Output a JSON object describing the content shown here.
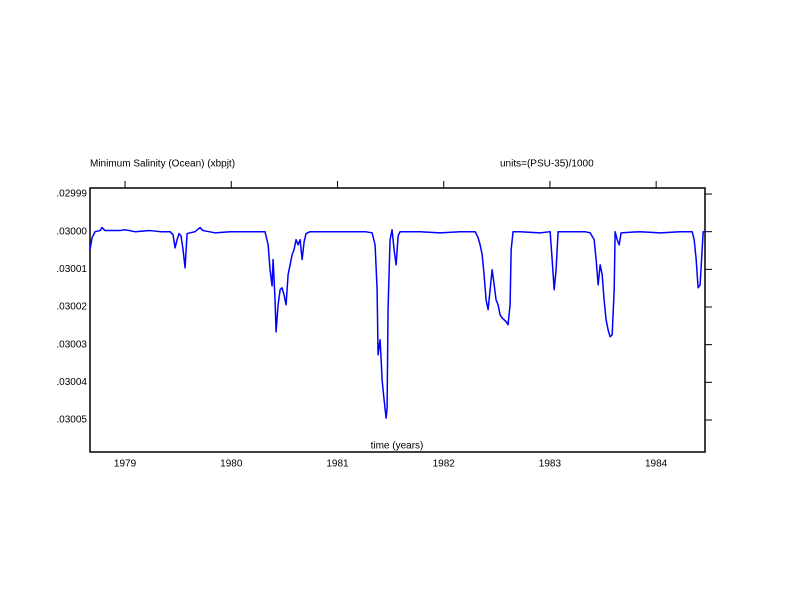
{
  "chart_data": {
    "type": "line",
    "title": "Minimum Salinity (Ocean) (xbpjt)",
    "subtitle": "units=(PSU-35)/1000",
    "xlabel": "time (years)",
    "xlim": [
      1978.67,
      1984.46
    ],
    "ylim": [
      0.0300585,
      0.0299884
    ],
    "xticks": [
      1979,
      1980,
      1981,
      1982,
      1983,
      1984
    ],
    "yticks": [
      {
        "value": 0.02999,
        "label": ".02999"
      },
      {
        "value": 0.03,
        "label": ".03000"
      },
      {
        "value": 0.03001,
        "label": ".03001"
      },
      {
        "value": 0.03002,
        "label": ".03002"
      },
      {
        "value": 0.03003,
        "label": ".03003"
      },
      {
        "value": 0.03004,
        "label": ".03004"
      },
      {
        "value": 0.03005,
        "label": ".03005"
      }
    ],
    "series": [
      {
        "color": "#0000ff",
        "x": [
          1978.67,
          1978.689,
          1978.718,
          1978.765,
          1978.783,
          1978.812,
          1978.953,
          1979.0,
          1979.094,
          1979.235,
          1979.33,
          1979.424,
          1979.452,
          1979.471,
          1979.49,
          1979.508,
          1979.527,
          1979.546,
          1979.565,
          1979.584,
          1979.659,
          1979.706,
          1979.734,
          1979.847,
          1979.989,
          1980.177,
          1980.318,
          1980.347,
          1980.365,
          1980.384,
          1980.394,
          1980.412,
          1980.422,
          1980.441,
          1980.46,
          1980.478,
          1980.497,
          1980.516,
          1980.535,
          1980.554,
          1980.573,
          1980.591,
          1980.61,
          1980.629,
          1980.648,
          1980.667,
          1980.686,
          1980.704,
          1980.742,
          1980.93,
          1981.119,
          1981.26,
          1981.326,
          1981.354,
          1981.373,
          1981.382,
          1981.401,
          1981.411,
          1981.42,
          1981.439,
          1981.458,
          1981.467,
          1981.476,
          1981.495,
          1981.514,
          1981.533,
          1981.552,
          1981.571,
          1981.589,
          1981.778,
          1981.966,
          1982.154,
          1982.296,
          1982.324,
          1982.343,
          1982.362,
          1982.38,
          1982.399,
          1982.418,
          1982.437,
          1982.456,
          1982.475,
          1982.493,
          1982.512,
          1982.531,
          1982.55,
          1982.569,
          1982.588,
          1982.606,
          1982.625,
          1982.635,
          1982.653,
          1982.719,
          1982.908,
          1983.002,
          1983.021,
          1983.04,
          1983.058,
          1983.077,
          1983.19,
          1983.331,
          1983.379,
          1983.416,
          1983.435,
          1983.454,
          1983.473,
          1983.492,
          1983.51,
          1983.529,
          1983.548,
          1983.567,
          1983.586,
          1983.605,
          1983.614,
          1983.633,
          1983.652,
          1983.67,
          1983.849,
          1984.038,
          1984.226,
          1984.339,
          1984.358,
          1984.377,
          1984.395,
          1984.414,
          1984.433,
          1984.443,
          1984.46
        ],
        "values": [
          0.0300048,
          0.0300016,
          0.03,
          0.0299997,
          0.0299989,
          0.0299997,
          0.0299997,
          0.0299995,
          0.03,
          0.0299997,
          0.03,
          0.03,
          0.0300008,
          0.0300043,
          0.0300021,
          0.0300005,
          0.0300011,
          0.0300048,
          0.0300096,
          0.0300005,
          0.03,
          0.0299989,
          0.0299997,
          0.0300003,
          0.03,
          0.03,
          0.03,
          0.0300035,
          0.0300101,
          0.0300144,
          0.0300074,
          0.0300181,
          0.0300266,
          0.0300194,
          0.0300154,
          0.0300149,
          0.0300168,
          0.0300194,
          0.0300114,
          0.0300088,
          0.0300061,
          0.0300048,
          0.0300021,
          0.0300035,
          0.0300021,
          0.0300074,
          0.0300027,
          0.0300005,
          0.03,
          0.03,
          0.03,
          0.03,
          0.0300003,
          0.0300035,
          0.0300154,
          0.0300327,
          0.0300287,
          0.030034,
          0.0300394,
          0.0300447,
          0.0300495,
          0.0300468,
          0.0300207,
          0.0300021,
          0.0299995,
          0.0300048,
          0.0300088,
          0.0300011,
          0.03,
          0.03,
          0.0300003,
          0.03,
          0.03,
          0.0300016,
          0.0300035,
          0.0300061,
          0.0300114,
          0.0300181,
          0.0300207,
          0.0300154,
          0.0300101,
          0.0300141,
          0.0300181,
          0.0300194,
          0.0300221,
          0.0300229,
          0.0300234,
          0.0300239,
          0.0300247,
          0.0300194,
          0.0300048,
          0.03,
          0.03,
          0.0300003,
          0.03,
          0.0300074,
          0.0300154,
          0.0300101,
          0.03,
          0.03,
          0.03,
          0.0300003,
          0.0300021,
          0.0300074,
          0.0300141,
          0.0300088,
          0.0300114,
          0.0300181,
          0.0300234,
          0.0300261,
          0.0300279,
          0.0300274,
          0.0300154,
          0.03,
          0.0300021,
          0.0300035,
          0.0300003,
          0.03,
          0.0300003,
          0.03,
          0.03,
          0.0300021,
          0.0300074,
          0.0300149,
          0.0300141,
          0.0300048,
          0.03,
          0.03
        ]
      }
    ]
  }
}
